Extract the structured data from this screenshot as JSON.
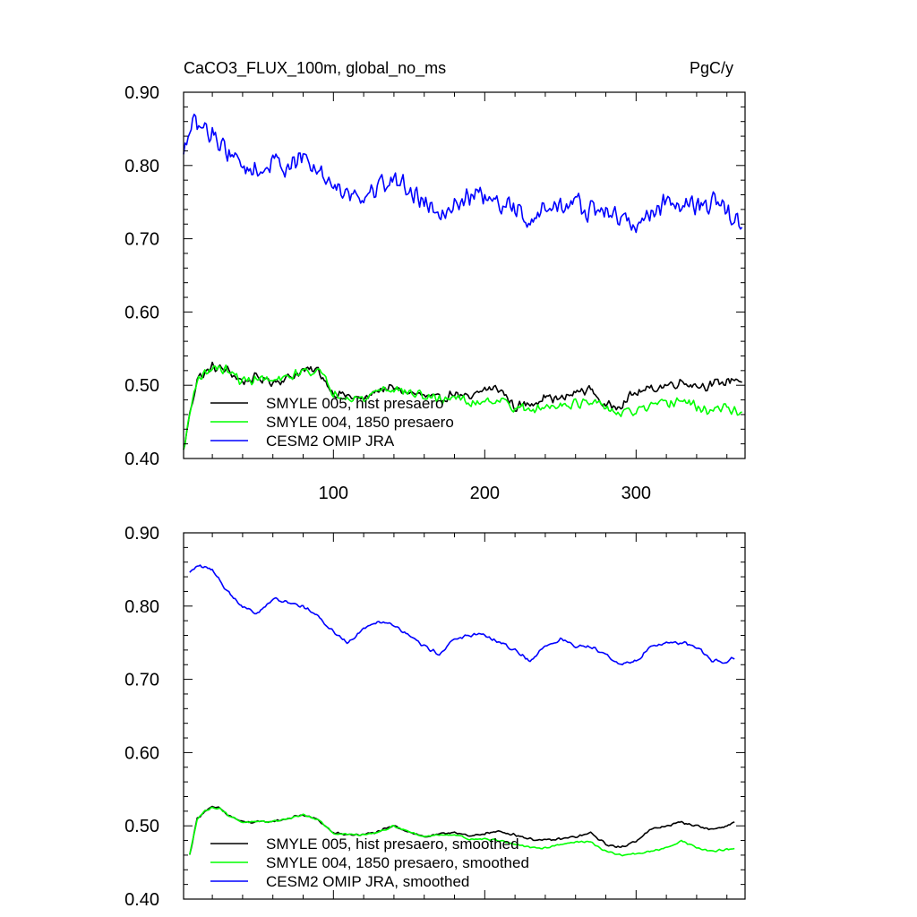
{
  "header": {
    "title": "CaCO3_FLUX_100m, global_no_ms",
    "units": "PgC/y"
  },
  "colors": {
    "hist": "#000000",
    "p1850": "#00ff00",
    "omip": "#0000ff"
  },
  "chart_data": [
    {
      "type": "line",
      "title": "CaCO3_FLUX_100m, global_no_ms",
      "units": "PgC/y",
      "xlim": [
        1,
        372
      ],
      "ylim": [
        0.4,
        0.9
      ],
      "xticks": [
        100,
        200,
        300
      ],
      "yticks": [
        0.4,
        0.5,
        0.6,
        0.7,
        0.8,
        0.9
      ],
      "ytick_labels": [
        "0.40",
        "0.50",
        "0.60",
        "0.70",
        "0.80",
        "0.90"
      ],
      "legend_position": "bottom-left",
      "series": [
        {
          "name": "SMYLE 005, hist presaero",
          "color": "#000000",
          "x": [
            1,
            5,
            10,
            15,
            20,
            30,
            40,
            50,
            60,
            70,
            80,
            90,
            100,
            110,
            120,
            130,
            140,
            150,
            160,
            170,
            180,
            190,
            200,
            210,
            220,
            230,
            240,
            250,
            260,
            270,
            280,
            290,
            300,
            310,
            320,
            330,
            340,
            350,
            360,
            365,
            370
          ],
          "y": [
            0.41,
            0.46,
            0.51,
            0.515,
            0.525,
            0.52,
            0.505,
            0.51,
            0.505,
            0.51,
            0.52,
            0.52,
            0.49,
            0.485,
            0.48,
            0.495,
            0.495,
            0.49,
            0.485,
            0.48,
            0.49,
            0.48,
            0.495,
            0.495,
            0.47,
            0.475,
            0.485,
            0.48,
            0.49,
            0.495,
            0.47,
            0.475,
            0.49,
            0.495,
            0.5,
            0.505,
            0.5,
            0.5,
            0.505,
            0.51,
            0.505
          ],
          "noise": 0.008
        },
        {
          "name": "SMYLE 004, 1850 presaero",
          "color": "#00ff00",
          "x": [
            1,
            5,
            10,
            15,
            20,
            30,
            40,
            50,
            60,
            70,
            80,
            90,
            100,
            110,
            120,
            130,
            140,
            150,
            160,
            170,
            180,
            190,
            200,
            210,
            220,
            230,
            240,
            250,
            260,
            270,
            280,
            290,
            300,
            310,
            320,
            330,
            340,
            350,
            360,
            365,
            370
          ],
          "y": [
            0.41,
            0.46,
            0.51,
            0.515,
            0.525,
            0.52,
            0.505,
            0.51,
            0.505,
            0.51,
            0.52,
            0.52,
            0.49,
            0.485,
            0.48,
            0.495,
            0.495,
            0.49,
            0.485,
            0.48,
            0.485,
            0.475,
            0.48,
            0.48,
            0.47,
            0.465,
            0.47,
            0.475,
            0.475,
            0.475,
            0.47,
            0.46,
            0.465,
            0.47,
            0.475,
            0.48,
            0.47,
            0.465,
            0.47,
            0.465,
            0.465
          ],
          "noise": 0.008
        },
        {
          "name": "CESM2 OMIP JRA",
          "color": "#0000ff",
          "x": [
            1,
            5,
            10,
            20,
            30,
            40,
            50,
            60,
            70,
            80,
            90,
            100,
            110,
            120,
            130,
            140,
            150,
            160,
            170,
            180,
            190,
            200,
            210,
            220,
            230,
            240,
            250,
            260,
            270,
            280,
            290,
            300,
            310,
            320,
            330,
            340,
            350,
            360,
            365,
            370
          ],
          "y": [
            0.81,
            0.85,
            0.855,
            0.845,
            0.82,
            0.8,
            0.79,
            0.805,
            0.8,
            0.81,
            0.79,
            0.775,
            0.765,
            0.755,
            0.775,
            0.78,
            0.77,
            0.75,
            0.74,
            0.745,
            0.76,
            0.755,
            0.745,
            0.74,
            0.725,
            0.74,
            0.745,
            0.75,
            0.735,
            0.74,
            0.725,
            0.72,
            0.735,
            0.75,
            0.75,
            0.745,
            0.75,
            0.735,
            0.725,
            0.72
          ],
          "noise": 0.018
        }
      ]
    },
    {
      "type": "line",
      "xlim": [
        1,
        372
      ],
      "ylim": [
        0.4,
        0.9
      ],
      "xticks": [
        100,
        200,
        300
      ],
      "yticks": [
        0.4,
        0.5,
        0.6,
        0.7,
        0.8,
        0.9
      ],
      "ytick_labels": [
        "0.40",
        "0.50",
        "0.60",
        "0.70",
        "0.80",
        "0.90"
      ],
      "legend_position": "bottom-left",
      "series": [
        {
          "name": "SMYLE 005, hist presaero, smoothed",
          "color": "#000000",
          "x": [
            5,
            10,
            15,
            20,
            25,
            30,
            40,
            50,
            60,
            70,
            80,
            90,
            100,
            110,
            120,
            130,
            140,
            150,
            160,
            170,
            180,
            190,
            200,
            210,
            220,
            230,
            240,
            250,
            260,
            270,
            280,
            290,
            300,
            310,
            320,
            330,
            340,
            350,
            360,
            365
          ],
          "y": [
            0.46,
            0.51,
            0.52,
            0.525,
            0.524,
            0.515,
            0.505,
            0.505,
            0.506,
            0.51,
            0.515,
            0.508,
            0.49,
            0.488,
            0.488,
            0.492,
            0.5,
            0.492,
            0.485,
            0.488,
            0.492,
            0.485,
            0.49,
            0.492,
            0.488,
            0.482,
            0.48,
            0.482,
            0.485,
            0.49,
            0.475,
            0.47,
            0.48,
            0.495,
            0.5,
            0.505,
            0.5,
            0.495,
            0.5,
            0.505
          ],
          "noise": 0.002
        },
        {
          "name": "SMYLE 004, 1850 presaero, smoothed",
          "color": "#00ff00",
          "x": [
            5,
            10,
            15,
            20,
            25,
            30,
            40,
            50,
            60,
            70,
            80,
            90,
            100,
            110,
            120,
            130,
            140,
            150,
            160,
            170,
            180,
            190,
            200,
            210,
            220,
            230,
            240,
            250,
            260,
            270,
            280,
            290,
            300,
            310,
            320,
            330,
            340,
            350,
            360,
            365
          ],
          "y": [
            0.46,
            0.51,
            0.52,
            0.525,
            0.524,
            0.515,
            0.505,
            0.505,
            0.506,
            0.51,
            0.515,
            0.508,
            0.49,
            0.488,
            0.488,
            0.492,
            0.5,
            0.492,
            0.485,
            0.488,
            0.488,
            0.482,
            0.482,
            0.48,
            0.475,
            0.47,
            0.47,
            0.475,
            0.478,
            0.478,
            0.465,
            0.46,
            0.462,
            0.465,
            0.47,
            0.48,
            0.47,
            0.465,
            0.468,
            0.468
          ],
          "noise": 0.0015
        },
        {
          "name": "CESM2 OMIP JRA, smoothed",
          "color": "#0000ff",
          "x": [
            5,
            10,
            20,
            30,
            40,
            50,
            60,
            70,
            80,
            90,
            100,
            110,
            120,
            130,
            140,
            150,
            160,
            170,
            180,
            190,
            200,
            210,
            220,
            230,
            240,
            250,
            260,
            270,
            280,
            290,
            300,
            310,
            320,
            330,
            340,
            350,
            360,
            365
          ],
          "y": [
            0.845,
            0.855,
            0.85,
            0.82,
            0.8,
            0.79,
            0.81,
            0.805,
            0.8,
            0.785,
            0.765,
            0.75,
            0.77,
            0.78,
            0.775,
            0.76,
            0.745,
            0.735,
            0.755,
            0.76,
            0.76,
            0.75,
            0.74,
            0.725,
            0.745,
            0.755,
            0.745,
            0.745,
            0.735,
            0.72,
            0.725,
            0.745,
            0.75,
            0.75,
            0.745,
            0.725,
            0.725,
            0.73
          ],
          "noise": 0.003
        }
      ]
    }
  ]
}
